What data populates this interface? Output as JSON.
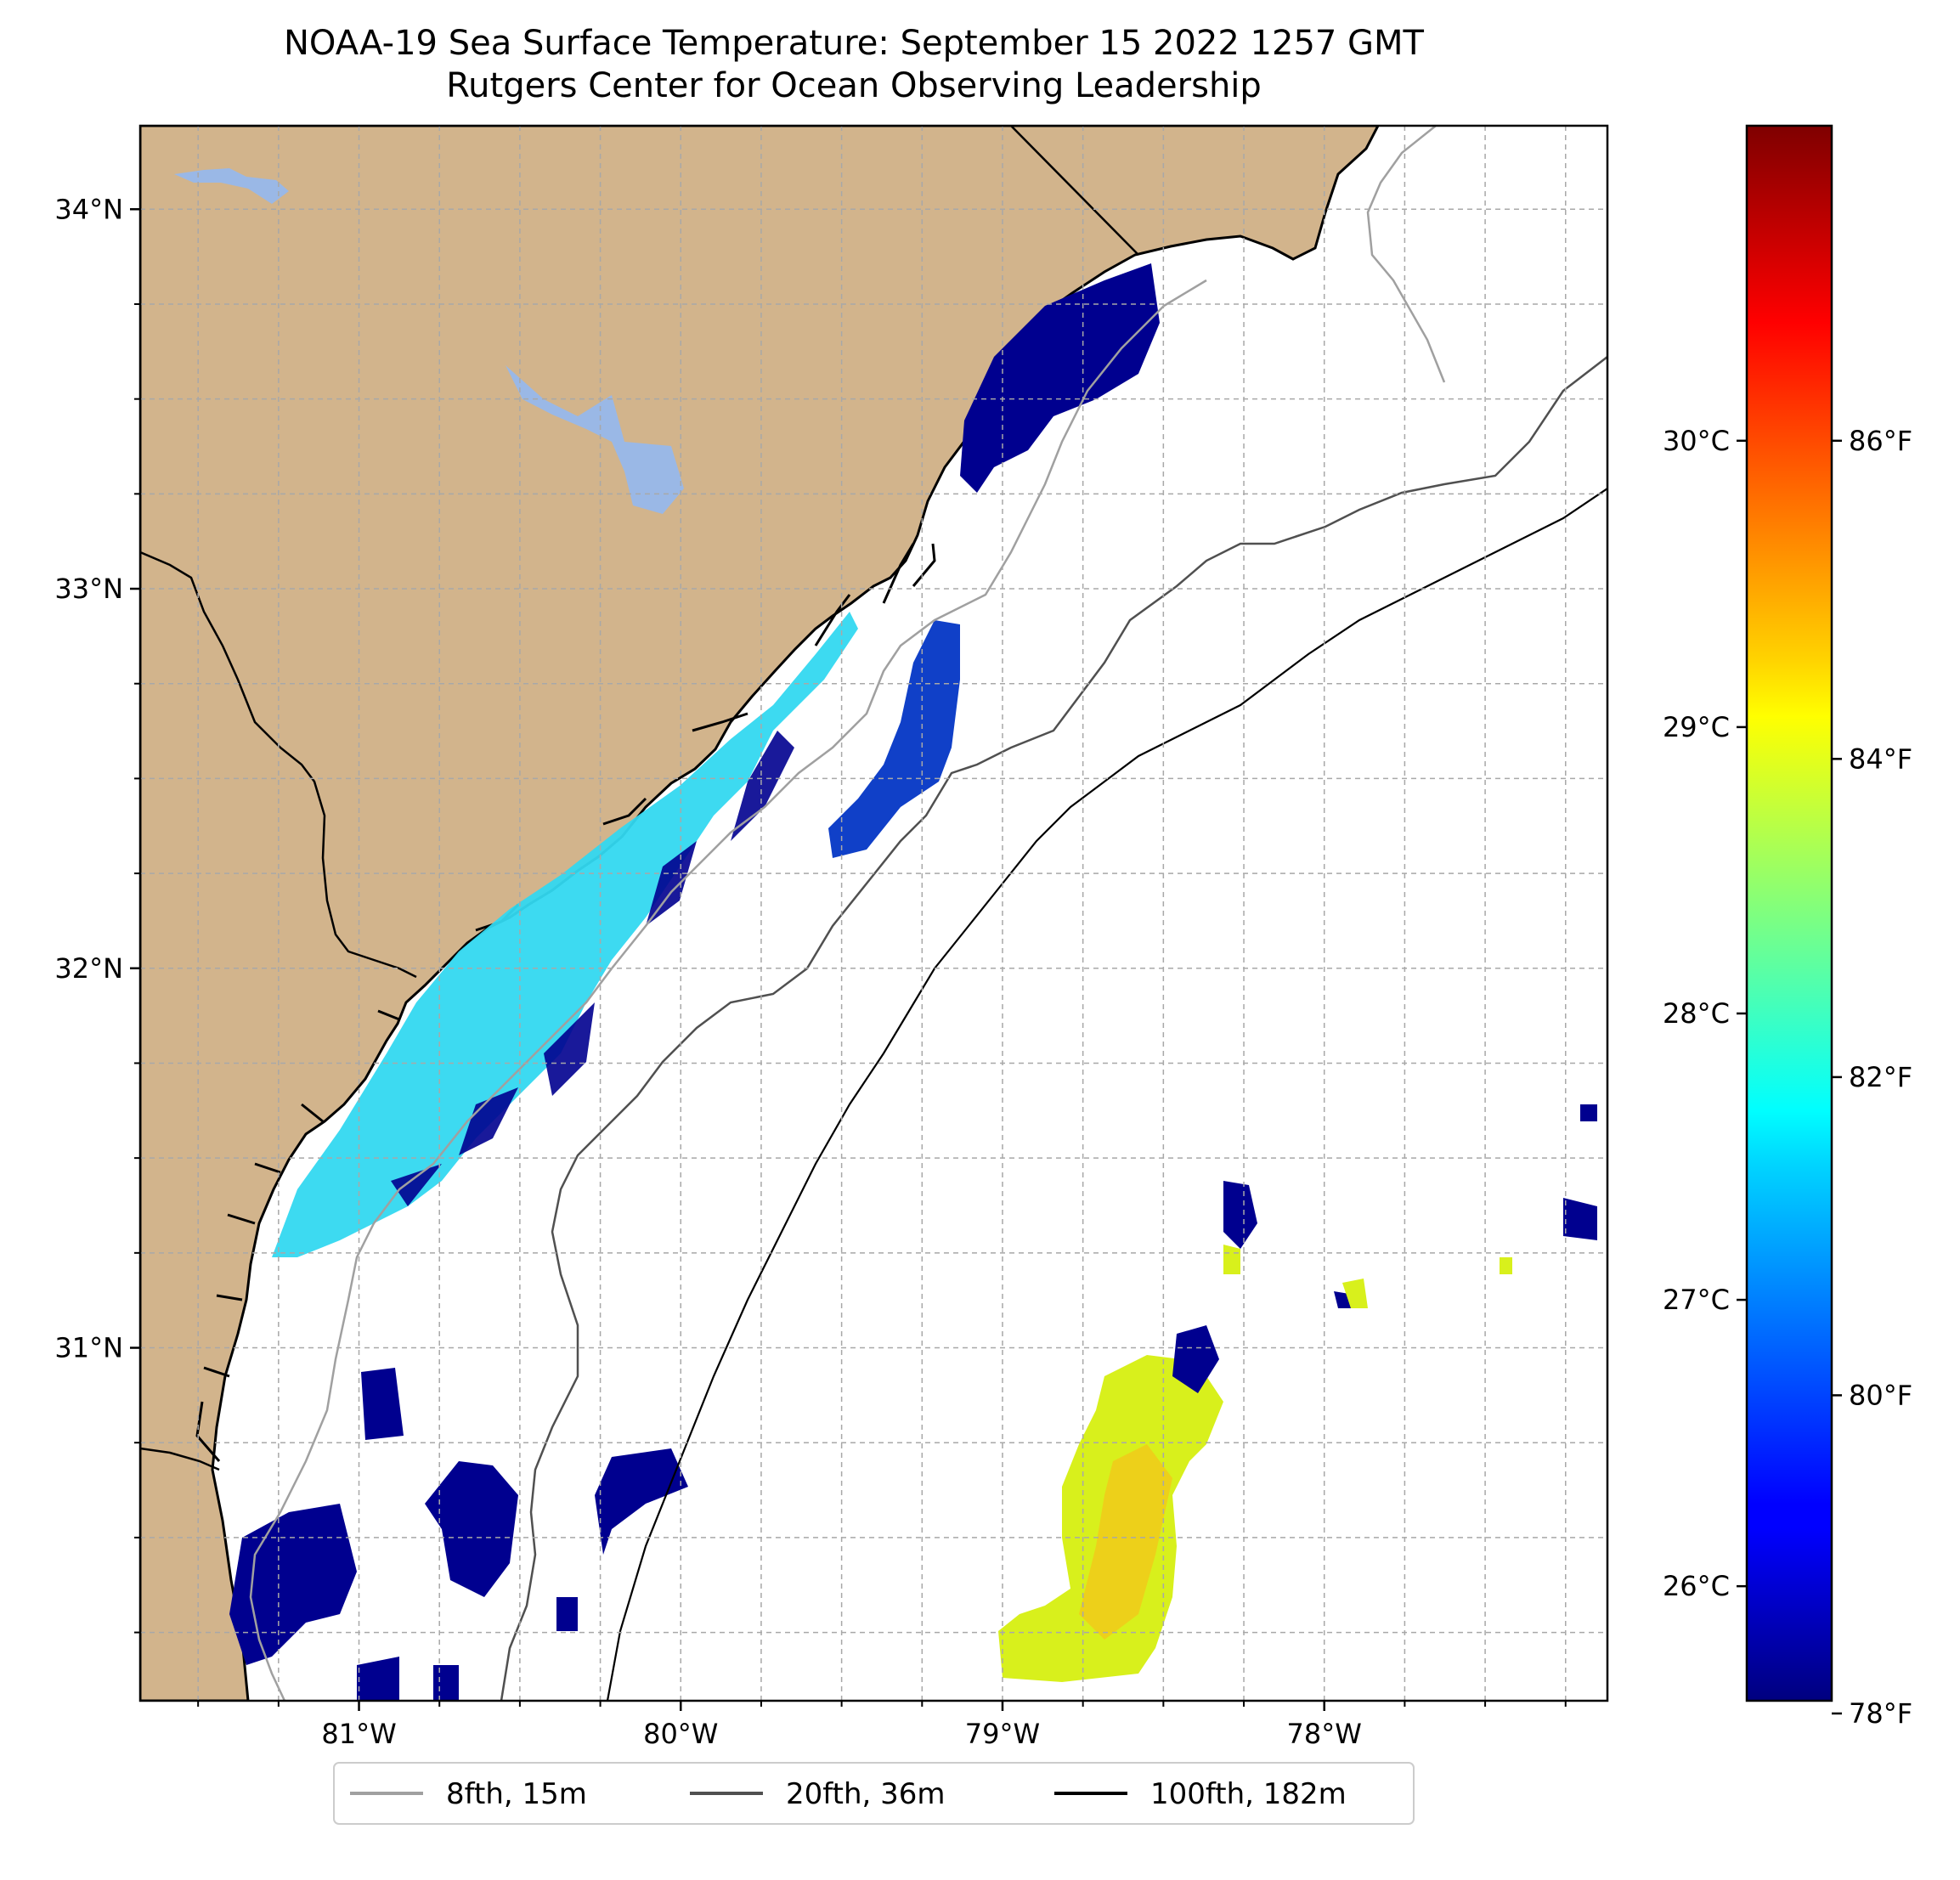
{
  "title": {
    "line1": "NOAA-19 Sea Surface Temperature: September 15 2022 1257 GMT",
    "line2": "Rutgers Center for Ocean Observing Leadership"
  },
  "map": {
    "lon_range": [
      -81.68,
      -77.12
    ],
    "lat_range": [
      30.07,
      34.22
    ],
    "land_color": "#d2b48c",
    "lake_color": "#9ab8e6",
    "water_color": "#ffffff",
    "coastline_color": "#000000",
    "gridlines": true,
    "lat_ticks": [
      {
        "value": 34,
        "label": "34°N"
      },
      {
        "value": 33,
        "label": "33°N"
      },
      {
        "value": 32,
        "label": "32°N"
      },
      {
        "value": 31,
        "label": "31°N"
      }
    ],
    "lon_ticks": [
      {
        "value": -81,
        "label": "81°W"
      },
      {
        "value": -80,
        "label": "80°W"
      },
      {
        "value": -79,
        "label": "79°W"
      },
      {
        "value": -78,
        "label": "78°W"
      }
    ]
  },
  "colorbar": {
    "colormap": "jet",
    "range_c": [
      25.6,
      31.1
    ],
    "celsius_ticks": [
      {
        "value": 26,
        "label": "26°C"
      },
      {
        "value": 27,
        "label": "27°C"
      },
      {
        "value": 28,
        "label": "28°C"
      },
      {
        "value": 29,
        "label": "29°C"
      },
      {
        "value": 30,
        "label": "30°C"
      }
    ],
    "fahrenheit_ticks": [
      {
        "value": 78,
        "label": "78°F"
      },
      {
        "value": 80,
        "label": "80°F"
      },
      {
        "value": 82,
        "label": "82°F"
      },
      {
        "value": 84,
        "label": "84°F"
      },
      {
        "value": 86,
        "label": "86°F"
      }
    ]
  },
  "legend": {
    "placement": "bottom-center",
    "items": [
      {
        "label": "8fth, 15m",
        "color": "#a0a0a0"
      },
      {
        "label": "20fth, 36m",
        "color": "#505050"
      },
      {
        "label": "100fth, 182m",
        "color": "#000000"
      }
    ]
  },
  "sst_patches": [
    {
      "name": "nearshore-warm-band",
      "color": "#33d8f0"
    },
    {
      "name": "offshore-cool-patches",
      "color": "#00008f"
    },
    {
      "name": "southeast-warm-patch",
      "color": "#d8f01c"
    }
  ]
}
